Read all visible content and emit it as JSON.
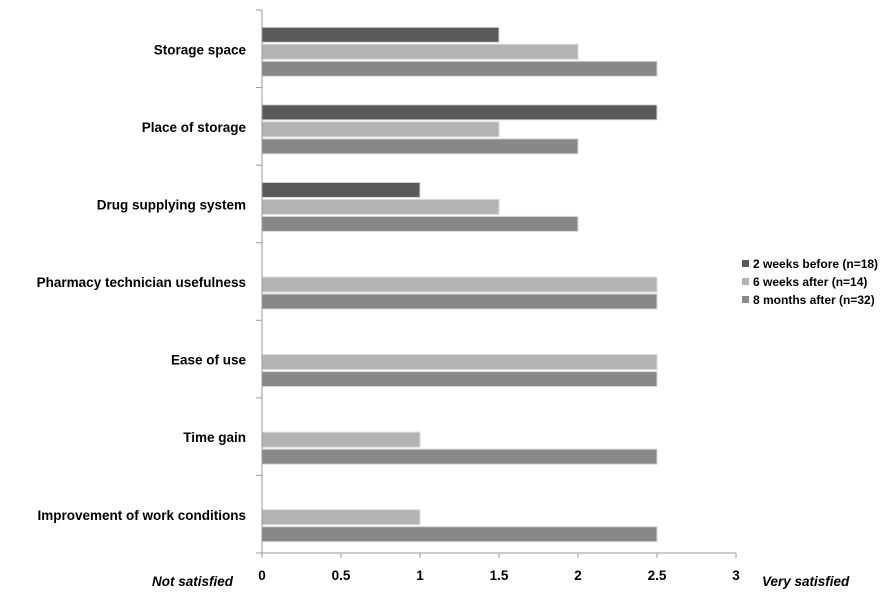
{
  "chart_data": {
    "type": "bar",
    "orientation": "horizontal",
    "categories": [
      "Storage space",
      "Place of storage",
      "Drug supplying system",
      "Pharmacy technician usefulness",
      "Ease of use",
      "Time gain",
      "Improvement of work conditions"
    ],
    "series": [
      {
        "name": "2 weeks before (n=18)",
        "color": "#595959",
        "values": [
          1.5,
          2.5,
          1.0,
          null,
          null,
          null,
          null
        ]
      },
      {
        "name": "6 weeks after (n=14)",
        "color": "#b3b3b3",
        "values": [
          2.0,
          1.5,
          1.5,
          2.5,
          2.5,
          1.0,
          1.0
        ]
      },
      {
        "name": "8 months after (n=32)",
        "color": "#888888",
        "values": [
          2.5,
          2.0,
          2.0,
          2.5,
          2.5,
          2.5,
          2.5
        ]
      }
    ],
    "x_ticks": [
      "0",
      "0.5",
      "1",
      "1.5",
      "2",
      "2.5",
      "3"
    ],
    "xlim": [
      0,
      3
    ],
    "x_left_label": "Not satisfied",
    "x_right_label": "Very satisfied",
    "grid": false,
    "legend_position": "right"
  }
}
